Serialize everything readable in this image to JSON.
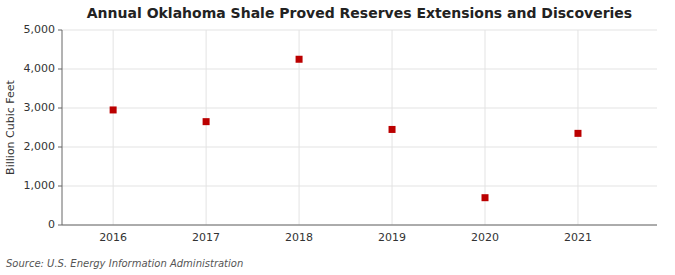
{
  "chart_data": {
    "type": "scatter",
    "title": "Annual Oklahoma Shale Proved Reserves Extensions and Discoveries",
    "y_label": "Billion Cubic Feet",
    "annotations": [
      "Source: U.S. Energy Information Administration"
    ],
    "x": [
      2016,
      2017,
      2018,
      2019,
      2020,
      2021
    ],
    "values": [
      2950,
      2650,
      4250,
      2450,
      700,
      2350
    ],
    "color": "#bb0000",
    "marker": "square",
    "xlim": [
      2015.45,
      2021.85
    ],
    "xticks": [
      2016,
      2017,
      2018,
      2019,
      2020,
      2021
    ],
    "ylim": [
      0,
      5000
    ],
    "yticks": [
      0,
      {
        "value": 1000,
        "label": "1,000"
      },
      {
        "value": 2000,
        "label": "2,000"
      },
      {
        "value": 3000,
        "label": "3,000"
      },
      {
        "value": 4000,
        "label": "4,000"
      },
      {
        "value": 5000,
        "label": "5,000"
      }
    ],
    "grid": true
  }
}
